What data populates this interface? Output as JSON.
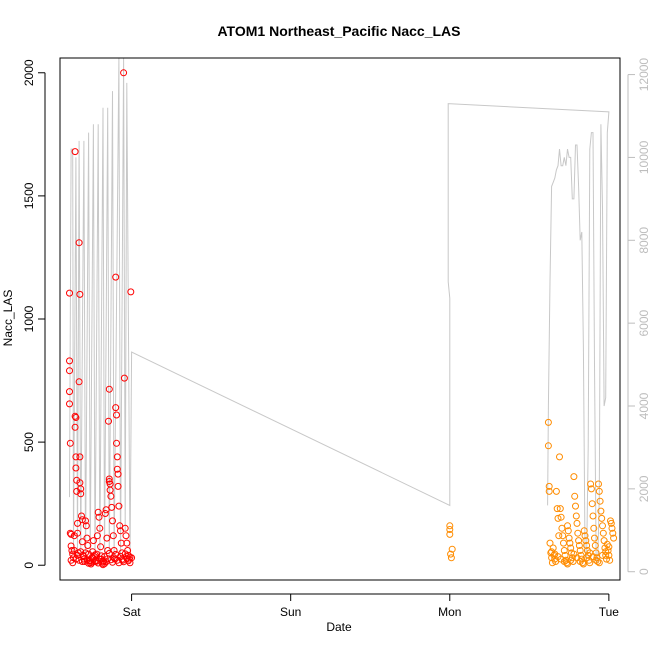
{
  "chart_data": {
    "type": "scatter",
    "title": "ATOM1 Northeast_Pacific Nacc_LAS",
    "xlabel": "Date",
    "ylabel": "Nacc_LAS",
    "xlim_days": [
      -0.45,
      3.07
    ],
    "ylim": [
      -60,
      2060
    ],
    "y2lim": [
      -200,
      12400
    ],
    "x_ticks": [
      {
        "label": "Sat",
        "day": 0
      },
      {
        "label": "Sun",
        "day": 1
      },
      {
        "label": "Mon",
        "day": 2
      },
      {
        "label": "Tue",
        "day": 3
      }
    ],
    "y_ticks": [
      "0",
      "500",
      "1000",
      "1500",
      "2000"
    ],
    "y2_ticks": [
      "0",
      "2000",
      "4000",
      "6000",
      "8000",
      "10000",
      "12000"
    ],
    "colors": {
      "series_a": "#ff0000",
      "series_b": "#ff8c00",
      "secondary_line": "#c8c8c8",
      "frame": "#000000"
    },
    "series": [
      {
        "color": "red",
        "points": [
          [
            -0.39,
            1105
          ],
          [
            -0.39,
            830
          ],
          [
            -0.39,
            790
          ],
          [
            -0.39,
            705
          ],
          [
            -0.39,
            655
          ],
          [
            -0.385,
            495
          ],
          [
            -0.385,
            130
          ],
          [
            -0.38,
            125
          ],
          [
            -0.38,
            78
          ],
          [
            -0.375,
            60
          ],
          [
            -0.37,
            45
          ],
          [
            -0.365,
            30
          ],
          [
            -0.36,
            120
          ],
          [
            -0.36,
            60
          ],
          [
            -0.355,
            1680
          ],
          [
            -0.355,
            605
          ],
          [
            -0.355,
            560
          ],
          [
            -0.35,
            600
          ],
          [
            -0.35,
            440
          ],
          [
            -0.35,
            395
          ],
          [
            -0.345,
            345
          ],
          [
            -0.345,
            300
          ],
          [
            -0.34,
            170
          ],
          [
            -0.34,
            130
          ],
          [
            -0.335,
            50
          ],
          [
            -0.33,
            20
          ],
          [
            -0.33,
            1310
          ],
          [
            -0.33,
            745
          ],
          [
            -0.325,
            1100
          ],
          [
            -0.325,
            440
          ],
          [
            -0.325,
            335
          ],
          [
            -0.32,
            310
          ],
          [
            -0.32,
            290
          ],
          [
            -0.315,
            200
          ],
          [
            -0.31,
            185
          ],
          [
            -0.31,
            95
          ],
          [
            -0.305,
            40
          ],
          [
            -0.3,
            25
          ],
          [
            -0.295,
            15
          ],
          [
            -0.29,
            180
          ],
          [
            -0.285,
            160
          ],
          [
            -0.28,
            110
          ],
          [
            -0.275,
            80
          ],
          [
            -0.27,
            45
          ],
          [
            -0.265,
            20
          ],
          [
            -0.26,
            10
          ],
          [
            -0.255,
            5
          ],
          [
            -0.25,
            30
          ],
          [
            -0.245,
            55
          ],
          [
            -0.24,
            100
          ],
          [
            -0.235,
            35
          ],
          [
            -0.23,
            15
          ],
          [
            -0.225,
            20
          ],
          [
            -0.22,
            45
          ],
          [
            -0.215,
            120
          ],
          [
            -0.21,
            215
          ],
          [
            -0.205,
            195
          ],
          [
            -0.2,
            150
          ],
          [
            -0.195,
            75
          ],
          [
            -0.19,
            25
          ],
          [
            -0.185,
            8
          ],
          [
            -0.18,
            2
          ],
          [
            -0.175,
            15
          ],
          [
            -0.17,
            35
          ],
          [
            -0.165,
            210
          ],
          [
            -0.16,
            225
          ],
          [
            -0.155,
            110
          ],
          [
            -0.15,
            60
          ],
          [
            -0.145,
            585
          ],
          [
            -0.14,
            715
          ],
          [
            -0.14,
            350
          ],
          [
            -0.14,
            340
          ],
          [
            -0.135,
            330
          ],
          [
            -0.135,
            305
          ],
          [
            -0.13,
            280
          ],
          [
            -0.125,
            235
          ],
          [
            -0.12,
            180
          ],
          [
            -0.115,
            120
          ],
          [
            -0.11,
            60
          ],
          [
            -0.105,
            25
          ],
          [
            -0.1,
            1170
          ],
          [
            -0.1,
            640
          ],
          [
            -0.095,
            610
          ],
          [
            -0.095,
            495
          ],
          [
            -0.09,
            440
          ],
          [
            -0.09,
            390
          ],
          [
            -0.085,
            370
          ],
          [
            -0.085,
            320
          ],
          [
            -0.08,
            240
          ],
          [
            -0.075,
            160
          ],
          [
            -0.07,
            140
          ],
          [
            -0.065,
            90
          ],
          [
            -0.06,
            50
          ],
          [
            -0.055,
            20
          ],
          [
            -0.05,
            2000
          ],
          [
            -0.045,
            760
          ],
          [
            -0.04,
            150
          ],
          [
            -0.035,
            120
          ],
          [
            -0.03,
            90
          ],
          [
            -0.025,
            60
          ],
          [
            -0.02,
            40
          ],
          [
            -0.015,
            25
          ],
          [
            -0.01,
            10
          ],
          [
            -0.005,
            1110
          ],
          [
            0.0,
            30
          ],
          [
            -0.38,
            20
          ],
          [
            -0.37,
            10
          ],
          [
            -0.35,
            25
          ],
          [
            -0.34,
            40
          ],
          [
            -0.32,
            55
          ],
          [
            -0.31,
            15
          ],
          [
            -0.3,
            35
          ],
          [
            -0.29,
            50
          ],
          [
            -0.28,
            22
          ],
          [
            -0.27,
            8
          ],
          [
            -0.26,
            18
          ],
          [
            -0.25,
            12
          ],
          [
            -0.24,
            28
          ],
          [
            -0.23,
            42
          ],
          [
            -0.22,
            16
          ],
          [
            -0.21,
            9
          ],
          [
            -0.2,
            24
          ],
          [
            -0.19,
            38
          ],
          [
            -0.18,
            18
          ],
          [
            -0.17,
            6
          ],
          [
            -0.16,
            14
          ],
          [
            -0.15,
            26
          ],
          [
            -0.14,
            48
          ],
          [
            -0.13,
            22
          ],
          [
            -0.12,
            12
          ],
          [
            -0.11,
            30
          ],
          [
            -0.1,
            44
          ],
          [
            -0.09,
            20
          ],
          [
            -0.08,
            10
          ],
          [
            -0.07,
            36
          ],
          [
            -0.06,
            24
          ],
          [
            -0.05,
            14
          ],
          [
            -0.04,
            46
          ],
          [
            -0.03,
            28
          ],
          [
            -0.02,
            18
          ],
          [
            -0.01,
            32
          ]
        ]
      },
      {
        "color": "orange",
        "points": [
          [
            2.0,
            160
          ],
          [
            2.0,
            145
          ],
          [
            2.0,
            125
          ],
          [
            2.005,
            45
          ],
          [
            2.01,
            30
          ],
          [
            2.015,
            65
          ],
          [
            2.62,
            580
          ],
          [
            2.62,
            485
          ],
          [
            2.625,
            320
          ],
          [
            2.625,
            300
          ],
          [
            2.63,
            90
          ],
          [
            2.635,
            50
          ],
          [
            2.64,
            30
          ],
          [
            2.645,
            10
          ],
          [
            2.65,
            70
          ],
          [
            2.655,
            40
          ],
          [
            2.66,
            25
          ],
          [
            2.665,
            15
          ],
          [
            2.67,
            300
          ],
          [
            2.675,
            230
          ],
          [
            2.68,
            190
          ],
          [
            2.685,
            120
          ],
          [
            2.69,
            440
          ],
          [
            2.695,
            230
          ],
          [
            2.7,
            195
          ],
          [
            2.705,
            150
          ],
          [
            2.71,
            120
          ],
          [
            2.715,
            90
          ],
          [
            2.72,
            60
          ],
          [
            2.725,
            40
          ],
          [
            2.73,
            20
          ],
          [
            2.735,
            10
          ],
          [
            2.74,
            160
          ],
          [
            2.745,
            140
          ],
          [
            2.75,
            110
          ],
          [
            2.755,
            90
          ],
          [
            2.76,
            70
          ],
          [
            2.765,
            50
          ],
          [
            2.77,
            30
          ],
          [
            2.775,
            15
          ],
          [
            2.78,
            360
          ],
          [
            2.785,
            280
          ],
          [
            2.79,
            240
          ],
          [
            2.795,
            200
          ],
          [
            2.8,
            170
          ],
          [
            2.805,
            130
          ],
          [
            2.81,
            100
          ],
          [
            2.815,
            80
          ],
          [
            2.82,
            60
          ],
          [
            2.825,
            40
          ],
          [
            2.83,
            25
          ],
          [
            2.835,
            10
          ],
          [
            2.84,
            5
          ],
          [
            2.845,
            140
          ],
          [
            2.85,
            120
          ],
          [
            2.855,
            100
          ],
          [
            2.86,
            80
          ],
          [
            2.865,
            60
          ],
          [
            2.87,
            40
          ],
          [
            2.875,
            20
          ],
          [
            2.88,
            10
          ],
          [
            2.885,
            330
          ],
          [
            2.89,
            310
          ],
          [
            2.895,
            250
          ],
          [
            2.9,
            200
          ],
          [
            2.905,
            150
          ],
          [
            2.91,
            110
          ],
          [
            2.915,
            80
          ],
          [
            2.92,
            50
          ],
          [
            2.925,
            30
          ],
          [
            2.93,
            15
          ],
          [
            2.935,
            330
          ],
          [
            2.94,
            300
          ],
          [
            2.945,
            260
          ],
          [
            2.95,
            220
          ],
          [
            2.955,
            190
          ],
          [
            2.96,
            160
          ],
          [
            2.965,
            130
          ],
          [
            2.97,
            100
          ],
          [
            2.975,
            70
          ],
          [
            2.98,
            40
          ],
          [
            2.985,
            25
          ],
          [
            2.99,
            85
          ],
          [
            2.995,
            60
          ],
          [
            3.0,
            40
          ],
          [
            3.005,
            20
          ],
          [
            3.01,
            180
          ],
          [
            3.015,
            170
          ],
          [
            3.02,
            150
          ],
          [
            3.025,
            130
          ],
          [
            3.03,
            110
          ],
          [
            2.64,
            55
          ],
          [
            2.66,
            45
          ],
          [
            2.68,
            35
          ],
          [
            2.7,
            25
          ],
          [
            2.72,
            15
          ],
          [
            2.74,
            5
          ],
          [
            2.76,
            20
          ],
          [
            2.78,
            45
          ],
          [
            2.8,
            30
          ],
          [
            2.82,
            15
          ],
          [
            2.86,
            30
          ],
          [
            2.88,
            50
          ],
          [
            2.9,
            35
          ],
          [
            2.92,
            20
          ],
          [
            2.94,
            10
          ],
          [
            2.96,
            40
          ],
          [
            2.98,
            55
          ],
          [
            3.0,
            75
          ]
        ]
      }
    ],
    "secondary_line": {
      "axis": "right",
      "color": "gray",
      "points": [
        [
          -0.39,
          1800
        ],
        [
          -0.38,
          10200
        ],
        [
          -0.37,
          10200
        ],
        [
          -0.365,
          500
        ],
        [
          -0.35,
          10000
        ],
        [
          -0.34,
          400
        ],
        [
          -0.33,
          10400
        ],
        [
          -0.32,
          300
        ],
        [
          -0.3,
          10400
        ],
        [
          -0.29,
          200
        ],
        [
          -0.27,
          10600
        ],
        [
          -0.26,
          300
        ],
        [
          -0.24,
          10800
        ],
        [
          -0.23,
          200
        ],
        [
          -0.21,
          10800
        ],
        [
          -0.2,
          200
        ],
        [
          -0.18,
          11200
        ],
        [
          -0.17,
          300
        ],
        [
          -0.15,
          11200
        ],
        [
          -0.14,
          200
        ],
        [
          -0.12,
          11600
        ],
        [
          -0.11,
          300
        ],
        [
          -0.08,
          12400
        ],
        [
          -0.07,
          200
        ],
        [
          -0.05,
          12400
        ],
        [
          -0.04,
          1000
        ],
        [
          -0.03,
          11800
        ],
        [
          -0.01,
          300
        ],
        [
          0.0,
          5300
        ],
        [
          2.0,
          1600
        ],
        [
          2.0,
          6600
        ],
        [
          1.99,
          7000
        ],
        [
          1.99,
          11300
        ],
        [
          3.0,
          11100
        ],
        [
          2.99,
          10600
        ],
        [
          2.98,
          4200
        ],
        [
          2.97,
          4000
        ],
        [
          2.96,
          8800
        ],
        [
          2.95,
          10800
        ],
        [
          2.94,
          1800
        ],
        [
          2.93,
          200
        ],
        [
          2.92,
          400
        ],
        [
          2.91,
          5000
        ],
        [
          2.9,
          10600
        ],
        [
          2.89,
          10600
        ],
        [
          2.88,
          10200
        ],
        [
          2.87,
          3000
        ],
        [
          2.86,
          300
        ],
        [
          2.85,
          500
        ],
        [
          2.84,
          5400
        ],
        [
          2.83,
          8200
        ],
        [
          2.82,
          8000
        ],
        [
          2.81,
          9300
        ],
        [
          2.8,
          10300
        ],
        [
          2.79,
          10300
        ],
        [
          2.78,
          9000
        ],
        [
          2.77,
          9000
        ],
        [
          2.76,
          10000
        ],
        [
          2.75,
          10000
        ],
        [
          2.74,
          10200
        ],
        [
          2.73,
          9800
        ],
        [
          2.72,
          10000
        ],
        [
          2.71,
          9800
        ],
        [
          2.7,
          9800
        ],
        [
          2.69,
          10200
        ],
        [
          2.68,
          9800
        ],
        [
          2.67,
          9700
        ],
        [
          2.66,
          9500
        ],
        [
          2.65,
          9400
        ],
        [
          2.64,
          9300
        ],
        [
          2.63,
          7000
        ],
        [
          2.62,
          4000
        ],
        [
          2.615,
          1600
        ]
      ]
    }
  }
}
